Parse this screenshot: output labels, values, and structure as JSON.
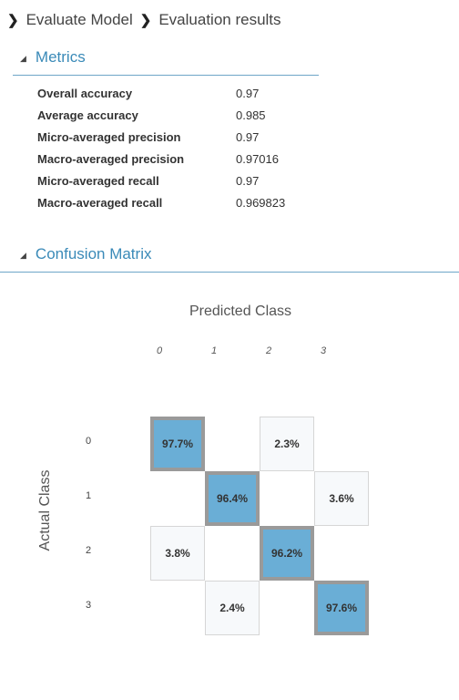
{
  "breadcrumb": {
    "items": [
      "Evaluate Model",
      "Evaluation results"
    ]
  },
  "metrics": {
    "title": "Metrics",
    "rows": [
      {
        "name": "Overall accuracy",
        "value": "0.97"
      },
      {
        "name": "Average accuracy",
        "value": "0.985"
      },
      {
        "name": "Micro-averaged precision",
        "value": "0.97"
      },
      {
        "name": "Macro-averaged precision",
        "value": "0.97016"
      },
      {
        "name": "Micro-averaged recall",
        "value": "0.97"
      },
      {
        "name": "Macro-averaged recall",
        "value": "0.969823"
      }
    ]
  },
  "confusion": {
    "title": "Confusion Matrix",
    "x_title": "Predicted Class",
    "y_title": "Actual Class",
    "col_labels": [
      "0",
      "1",
      "2",
      "3"
    ],
    "row_labels": [
      "0",
      "1",
      "2",
      "3"
    ],
    "highlight_color": "#6aaed6",
    "cells": [
      [
        "97.7%",
        "",
        "2.3%",
        ""
      ],
      [
        "",
        "96.4%",
        "",
        "3.6%"
      ],
      [
        "3.8%",
        "",
        "96.2%",
        ""
      ],
      [
        "",
        "2.4%",
        "",
        "97.6%"
      ]
    ]
  },
  "chart_data": {
    "type": "heatmap",
    "title": "",
    "xlabel": "Predicted Class",
    "ylabel": "Actual Class",
    "x": [
      "0",
      "1",
      "2",
      "3"
    ],
    "y": [
      "0",
      "1",
      "2",
      "3"
    ],
    "values_percent": [
      [
        97.7,
        null,
        2.3,
        null
      ],
      [
        null,
        96.4,
        null,
        3.6
      ],
      [
        3.8,
        null,
        96.2,
        null
      ],
      [
        null,
        2.4,
        null,
        97.6
      ]
    ]
  }
}
